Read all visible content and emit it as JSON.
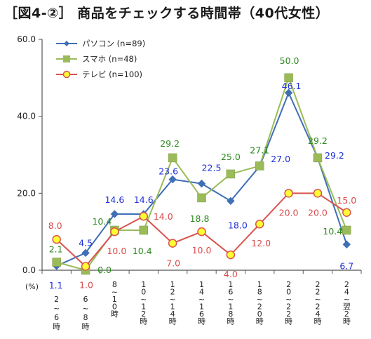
{
  "chart_data": {
    "type": "line",
    "title": "［図4-②］ 商品をチェックする時間帯（40代女性）",
    "unit_label": "(%)",
    "categories": [
      [
        "2",
        "~",
        "6",
        "時"
      ],
      [
        "6",
        "~",
        "8",
        "時"
      ],
      [
        "8",
        "~",
        "1",
        "0",
        "時"
      ],
      [
        "1",
        "0",
        "~",
        "1",
        "2",
        "時"
      ],
      [
        "1",
        "2",
        "~",
        "1",
        "4",
        "時"
      ],
      [
        "1",
        "4",
        "~",
        "1",
        "6",
        "時"
      ],
      [
        "1",
        "6",
        "~",
        "1",
        "8",
        "時"
      ],
      [
        "1",
        "8",
        "~",
        "2",
        "0",
        "時"
      ],
      [
        "2",
        "0",
        "~",
        "2",
        "2",
        "時"
      ],
      [
        "2",
        "2",
        "~",
        "2",
        "4",
        "時"
      ],
      [
        "2",
        "4",
        "~",
        "翌",
        "2",
        "時"
      ]
    ],
    "ylim": [
      0,
      60
    ],
    "yticks": [
      "0.0",
      "20.0",
      "40.0",
      "60.0"
    ],
    "legend_position": "top-left",
    "series": [
      {
        "name": "パソコン (n=89)",
        "color": "#3f6fb5",
        "label_color": "#1f2fd6",
        "marker": "diamond",
        "values": [
          1.1,
          4.5,
          14.6,
          14.6,
          23.6,
          22.5,
          18.0,
          27.0,
          46.1,
          29.2,
          6.7
        ],
        "labels": [
          "1.1",
          "4.5",
          "14.6",
          "14.6",
          "23.6",
          "22.5",
          "18.0",
          "27.0",
          "46.1",
          "29.2",
          "6.7"
        ]
      },
      {
        "name": "スマホ (n=48)",
        "color": "#9bbb59",
        "label_color": "#2d8a1e",
        "marker": "square",
        "values": [
          2.1,
          0.0,
          10.4,
          10.4,
          29.2,
          18.8,
          25.0,
          27.1,
          50.0,
          29.2,
          10.4
        ],
        "labels": [
          "2.1",
          "0.0",
          "10.4",
          "10.4",
          "29.2",
          "18.8",
          "25.0",
          "27.1",
          "50.0",
          "29.2",
          "10.4"
        ]
      },
      {
        "name": "テレビ (n=100)",
        "color": "#d9534f",
        "label_color": "#d94c4c",
        "marker": "circle",
        "marker_fill": "#ffff33",
        "values": [
          8.0,
          1.0,
          10.0,
          14.0,
          7.0,
          10.0,
          4.0,
          12.0,
          20.0,
          20.0,
          15.0
        ],
        "labels": [
          "8.0",
          "1.0",
          "10.0",
          "14.0",
          "7.0",
          "10.0",
          "4.0",
          "12.0",
          "20.0",
          "20.0",
          "15.0"
        ]
      }
    ]
  }
}
